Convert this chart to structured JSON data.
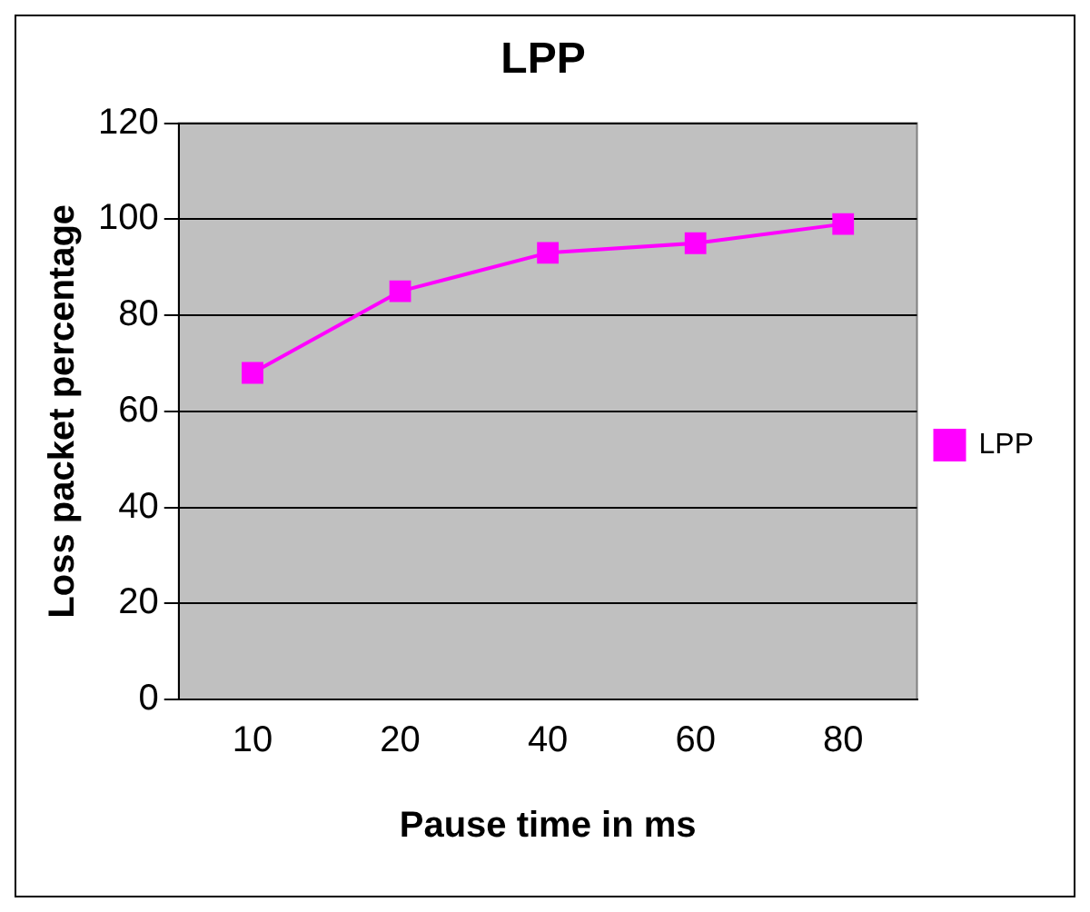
{
  "chart_data": {
    "type": "line",
    "title": "LPP",
    "xlabel": "Pause time in ms",
    "ylabel": "Loss packet percentage",
    "categories": [
      "10",
      "20",
      "40",
      "60",
      "80"
    ],
    "series": [
      {
        "name": "LPP",
        "color": "#ff00ff",
        "values": [
          68,
          85,
          93,
          95,
          99
        ]
      }
    ],
    "ylim": [
      0,
      120
    ],
    "yticks": [
      0,
      20,
      40,
      60,
      80,
      100,
      120
    ],
    "grid": "y",
    "legend": "right",
    "marker": "square",
    "line_style": "solid"
  }
}
